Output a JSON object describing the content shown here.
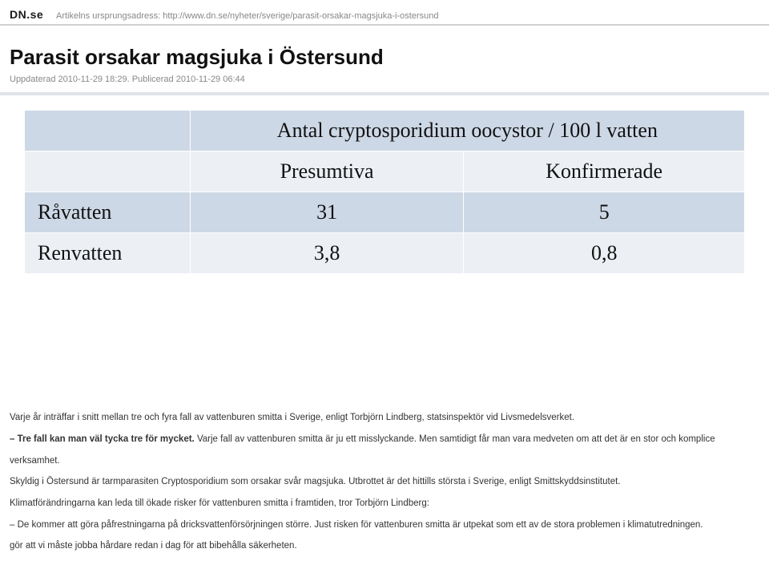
{
  "header": {
    "site_logo": "DN.se",
    "url_prefix": "Artikelns ursprungsadress: ",
    "url": "http://www.dn.se/nyheter/sverige/parasit-orsakar-magsjuka-i-ostersund"
  },
  "article": {
    "headline": "Parasit orsakar magsjuka i Östersund",
    "pub_line": "Uppdaterad 2010-11-29 18:29. Publicerad 2010-11-29 06:44"
  },
  "table": {
    "colors": {
      "band_dark": "#cdd8e6",
      "band_light": "#ecf0f5",
      "border": "#ffffff",
      "text": "#111111"
    },
    "font_family": "Georgia",
    "font_size_pt": 20,
    "title_span": "Antal cryptosporidium oocystor / 100 l vatten",
    "col_headers": [
      "Presumtiva",
      "Konfirmerade"
    ],
    "rows": [
      {
        "label": "Råvatten",
        "values": [
          "31",
          "5"
        ]
      },
      {
        "label": "Renvatten",
        "values": [
          "3,8",
          "0,8"
        ]
      }
    ]
  },
  "body": {
    "p1": "Varje år inträffar i snitt mellan tre och fyra fall av vattenburen smitta i Sverige, enligt Torbjörn Lindberg, statsinspektör vid Livsmedelsverket.",
    "p2_bold": "– Tre fall kan man väl tycka tre för mycket.",
    "p2_rest": " Varje fall av vattenburen smitta är ju ett misslyckande. Men samtidigt får man vara medveten om att det är en stor och komplice",
    "p2_cont": "verksamhet.",
    "p3": "Skyldig i Östersund är tarmparasiten Cryptosporidium som orsakar svår magsjuka. Utbrottet är det hittills största i Sverige, enligt Smittskyddsinstitutet.",
    "p4": "Klimatförändringarna kan leda till ökade risker för vattenburen smitta i framtiden, tror Torbjörn Lindberg:",
    "p5a": "– De kommer att göra påfrestningarna på dricksvattenförsörjningen större. Just risken för vattenburen smitta är utpekat som ett av de stora problemen i klimatutredningen.",
    "p5b": "gör att vi måste jobba hårdare redan i dag för att bibehålla säkerheten."
  }
}
